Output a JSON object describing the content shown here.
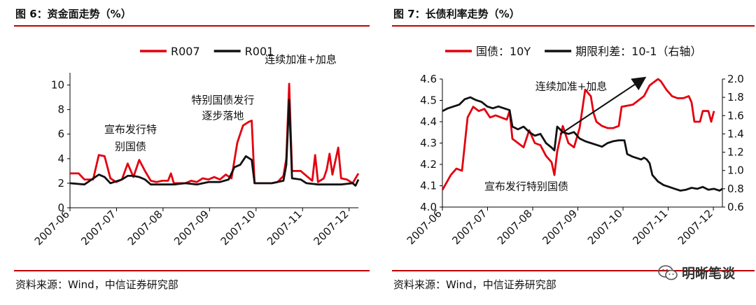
{
  "left_panel": {
    "title": "图 6：资金面走势（%）",
    "source": "资料来源：Wind，中信证券研究部"
  },
  "right_panel": {
    "title": "图 7：长债利率走势（%）",
    "source": "资料来源：Wind，中信证券研究部"
  },
  "watermark": {
    "text": "明晰笔谈",
    "icon": "wechat-icon"
  },
  "chart_data": [
    {
      "type": "line",
      "title": "",
      "x_tick_labels": [
        "2007-06",
        "2007-07",
        "2007-08",
        "2007-09",
        "2007-10",
        "2007-11",
        "2007-12"
      ],
      "y_tick_labels": [
        "0",
        "2",
        "4",
        "6",
        "8",
        "10"
      ],
      "ylim": [
        0,
        11
      ],
      "grid": false,
      "legend_position": "top-center",
      "series": [
        {
          "name": "R007",
          "color": "#e3000f",
          "points": [
            [
              0,
              2.8
            ],
            [
              3,
              2.8
            ],
            [
              5,
              2.3
            ],
            [
              8,
              2.3
            ],
            [
              10,
              4.3
            ],
            [
              12,
              4.2
            ],
            [
              14,
              2.4
            ],
            [
              16,
              2.1
            ],
            [
              18,
              2.3
            ],
            [
              20,
              3.6
            ],
            [
              22,
              2.5
            ],
            [
              24,
              3.9
            ],
            [
              26,
              3.0
            ],
            [
              28,
              2.2
            ],
            [
              30,
              2.1
            ],
            [
              32,
              2.2
            ],
            [
              34,
              2.2
            ],
            [
              35,
              2.8
            ],
            [
              36,
              2.0
            ],
            [
              40,
              2.0
            ],
            [
              42,
              2.2
            ],
            [
              44,
              2.1
            ],
            [
              46,
              2.4
            ],
            [
              48,
              2.3
            ],
            [
              50,
              2.5
            ],
            [
              52,
              2.3
            ],
            [
              54,
              2.7
            ],
            [
              56,
              2.4
            ],
            [
              58,
              5.3
            ],
            [
              60,
              6.7
            ],
            [
              62,
              7.0
            ],
            [
              63,
              7.1
            ],
            [
              64,
              2.0
            ],
            [
              68,
              2.0
            ],
            [
              70,
              2.0
            ],
            [
              72,
              2.1
            ],
            [
              74,
              2.6
            ],
            [
              75,
              4.0
            ],
            [
              76,
              10.1
            ],
            [
              77,
              3.0
            ],
            [
              80,
              3.0
            ],
            [
              82,
              2.6
            ],
            [
              84,
              2.2
            ],
            [
              85,
              4.3
            ],
            [
              86,
              2.1
            ],
            [
              88,
              2.4
            ],
            [
              89,
              3.1
            ],
            [
              90,
              4.4
            ],
            [
              91,
              2.7
            ],
            [
              93,
              4.9
            ],
            [
              94,
              2.4
            ],
            [
              96,
              2.3
            ],
            [
              98,
              2.0
            ],
            [
              100,
              2.8
            ]
          ]
        },
        {
          "name": "R001",
          "color": "#111111",
          "points": [
            [
              0,
              2.0
            ],
            [
              5,
              1.9
            ],
            [
              10,
              2.7
            ],
            [
              12,
              2.5
            ],
            [
              14,
              2.0
            ],
            [
              18,
              2.3
            ],
            [
              20,
              2.6
            ],
            [
              22,
              2.6
            ],
            [
              24,
              2.5
            ],
            [
              26,
              2.3
            ],
            [
              28,
              1.9
            ],
            [
              32,
              1.9
            ],
            [
              36,
              1.9
            ],
            [
              40,
              2.0
            ],
            [
              44,
              1.9
            ],
            [
              48,
              2.1
            ],
            [
              52,
              2.1
            ],
            [
              55,
              2.3
            ],
            [
              57,
              3.3
            ],
            [
              59,
              3.5
            ],
            [
              61,
              4.2
            ],
            [
              63,
              3.9
            ],
            [
              64,
              2.0
            ],
            [
              70,
              2.0
            ],
            [
              74,
              2.2
            ],
            [
              75,
              3.5
            ],
            [
              76,
              8.8
            ],
            [
              77,
              2.4
            ],
            [
              80,
              2.3
            ],
            [
              82,
              2.0
            ],
            [
              86,
              1.9
            ],
            [
              90,
              1.9
            ],
            [
              94,
              1.9
            ],
            [
              98,
              2.0
            ],
            [
              99,
              1.8
            ],
            [
              100,
              2.3
            ]
          ]
        }
      ],
      "annotations": [
        {
          "text": "连续加准+加息",
          "x": 80,
          "y": 11.8
        },
        {
          "text": "特别国债发行",
          "x": 53,
          "y": 8.5
        },
        {
          "text": "逐步落地",
          "x": 53,
          "y": 7.2
        },
        {
          "text": "宣布发行特",
          "x": 21,
          "y": 6.1
        },
        {
          "text": "别国债",
          "x": 21,
          "y": 4.7
        }
      ]
    },
    {
      "type": "line",
      "title": "",
      "x_tick_labels": [
        "2007-06",
        "2007-07",
        "2007-08",
        "2007-09",
        "2007-10",
        "2007-11",
        "2007-12"
      ],
      "y_left_tick_labels": [
        "4.0",
        "4.1",
        "4.2",
        "4.3",
        "4.4",
        "4.5",
        "4.6"
      ],
      "y_right_tick_labels": [
        "0.6",
        "0.8",
        "1.0",
        "1.2",
        "1.4",
        "1.6",
        "1.8",
        "2.0"
      ],
      "ylim_left": [
        4.0,
        4.6
      ],
      "ylim_right": [
        0.6,
        2.0
      ],
      "grid": false,
      "legend_position": "top-center",
      "series": [
        {
          "name": "国债：10Y",
          "axis": "left",
          "color": "#e3000f",
          "points": [
            [
              0,
              4.08
            ],
            [
              3,
              4.15
            ],
            [
              5,
              4.18
            ],
            [
              7,
              4.17
            ],
            [
              9,
              4.42
            ],
            [
              11,
              4.47
            ],
            [
              13,
              4.45
            ],
            [
              15,
              4.46
            ],
            [
              17,
              4.42
            ],
            [
              19,
              4.43
            ],
            [
              21,
              4.42
            ],
            [
              23,
              4.41
            ],
            [
              24,
              4.45
            ],
            [
              25,
              4.32
            ],
            [
              27,
              4.3
            ],
            [
              29,
              4.28
            ],
            [
              31,
              4.36
            ],
            [
              33,
              4.3
            ],
            [
              35,
              4.29
            ],
            [
              37,
              4.24
            ],
            [
              39,
              4.21
            ],
            [
              40,
              4.15
            ],
            [
              41,
              4.26
            ],
            [
              43,
              4.38
            ],
            [
              45,
              4.3
            ],
            [
              47,
              4.28
            ],
            [
              49,
              4.37
            ],
            [
              50,
              4.46
            ],
            [
              51,
              4.55
            ],
            [
              53,
              4.52
            ],
            [
              54,
              4.44
            ],
            [
              55,
              4.4
            ],
            [
              57,
              4.38
            ],
            [
              59,
              4.37
            ],
            [
              61,
              4.37
            ],
            [
              63,
              4.38
            ],
            [
              64,
              4.47
            ],
            [
              68,
              4.48
            ],
            [
              70,
              4.5
            ],
            [
              72,
              4.52
            ],
            [
              74,
              4.57
            ],
            [
              76,
              4.59
            ],
            [
              77,
              4.6
            ],
            [
              78,
              4.59
            ],
            [
              80,
              4.55
            ],
            [
              82,
              4.52
            ],
            [
              84,
              4.51
            ],
            [
              86,
              4.51
            ],
            [
              88,
              4.52
            ],
            [
              89,
              4.49
            ],
            [
              90,
              4.4
            ],
            [
              92,
              4.4
            ],
            [
              93,
              4.45
            ],
            [
              95,
              4.45
            ],
            [
              96,
              4.4
            ],
            [
              97,
              4.45
            ]
          ]
        },
        {
          "name": "期限利差：10-1（右轴）",
          "axis": "right",
          "color": "#111111",
          "points": [
            [
              0,
              1.65
            ],
            [
              2,
              1.68
            ],
            [
              4,
              1.7
            ],
            [
              6,
              1.72
            ],
            [
              8,
              1.78
            ],
            [
              10,
              1.8
            ],
            [
              12,
              1.77
            ],
            [
              14,
              1.75
            ],
            [
              16,
              1.7
            ],
            [
              18,
              1.68
            ],
            [
              20,
              1.7
            ],
            [
              22,
              1.68
            ],
            [
              24,
              1.66
            ],
            [
              25,
              1.48
            ],
            [
              27,
              1.45
            ],
            [
              29,
              1.48
            ],
            [
              31,
              1.42
            ],
            [
              33,
              1.38
            ],
            [
              35,
              1.4
            ],
            [
              37,
              1.3
            ],
            [
              39,
              1.25
            ],
            [
              40,
              1.22
            ],
            [
              41,
              1.48
            ],
            [
              43,
              1.42
            ],
            [
              45,
              1.4
            ],
            [
              47,
              1.42
            ],
            [
              49,
              1.35
            ],
            [
              51,
              1.32
            ],
            [
              53,
              1.3
            ],
            [
              55,
              1.28
            ],
            [
              57,
              1.26
            ],
            [
              59,
              1.3
            ],
            [
              61,
              1.32
            ],
            [
              63,
              1.33
            ],
            [
              65,
              1.33
            ],
            [
              66,
              1.18
            ],
            [
              68,
              1.15
            ],
            [
              70,
              1.13
            ],
            [
              71,
              1.12
            ],
            [
              72,
              1.14
            ],
            [
              73,
              1.12
            ],
            [
              74,
              1.08
            ],
            [
              75,
              0.95
            ],
            [
              77,
              0.88
            ],
            [
              79,
              0.84
            ],
            [
              81,
              0.82
            ],
            [
              83,
              0.8
            ],
            [
              85,
              0.78
            ],
            [
              87,
              0.79
            ],
            [
              89,
              0.81
            ],
            [
              91,
              0.8
            ],
            [
              93,
              0.82
            ],
            [
              95,
              0.79
            ],
            [
              97,
              0.8
            ],
            [
              99,
              0.78
            ],
            [
              100,
              0.8
            ]
          ]
        }
      ],
      "annotations": [
        {
          "text": "连续加准+加息",
          "x": 46,
          "y": 4.55
        },
        {
          "text": "宣布发行特别国债",
          "x": 30,
          "y": 4.08
        }
      ]
    }
  ]
}
